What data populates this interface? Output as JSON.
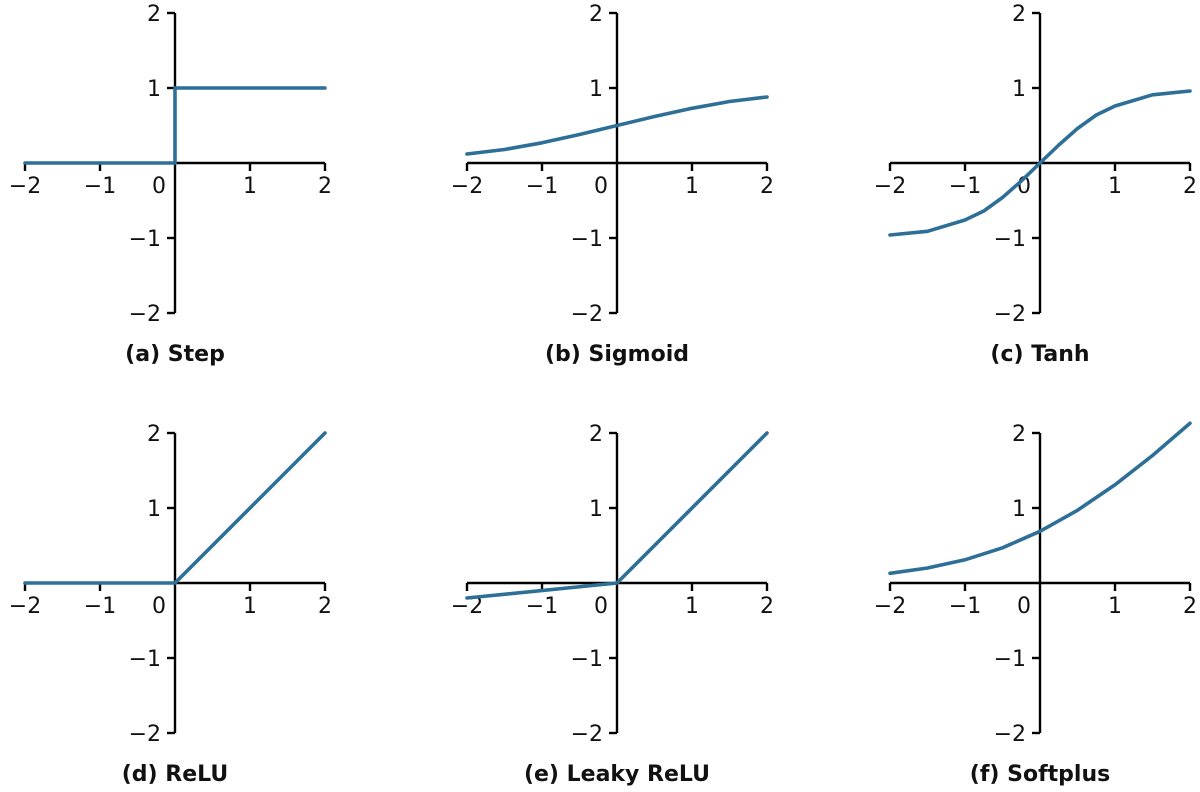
{
  "figure": {
    "line_color": "#2e6f97",
    "axis_color": "#000000"
  },
  "chart_data": [
    {
      "type": "line",
      "caption": "(a) Step",
      "xlim": [
        -2,
        2
      ],
      "ylim": [
        -2,
        2
      ],
      "x_ticks": [
        -2,
        -1,
        0,
        1,
        2
      ],
      "x_tick_labels": [
        "−2",
        "−1",
        "0",
        "1",
        "2"
      ],
      "y_ticks": [
        -2,
        -1,
        1,
        2
      ],
      "y_tick_labels": [
        "−2",
        "−1",
        "1",
        "2"
      ],
      "grid": false,
      "series": [
        {
          "x": [
            -2,
            0,
            0,
            2
          ],
          "y": [
            0,
            0,
            1,
            1
          ]
        }
      ]
    },
    {
      "type": "line",
      "caption": "(b) Sigmoid",
      "xlim": [
        -2,
        2
      ],
      "ylim": [
        -2,
        2
      ],
      "x_ticks": [
        -2,
        -1,
        0,
        1,
        2
      ],
      "x_tick_labels": [
        "−2",
        "−1",
        "0",
        "1",
        "2"
      ],
      "y_ticks": [
        -2,
        -1,
        1,
        2
      ],
      "y_tick_labels": [
        "−2",
        "−1",
        "1",
        "2"
      ],
      "grid": false,
      "series": [
        {
          "x": [
            -2,
            -1.5,
            -1,
            -0.5,
            0,
            0.5,
            1,
            1.5,
            2
          ],
          "y": [
            0.12,
            0.18,
            0.27,
            0.38,
            0.5,
            0.62,
            0.73,
            0.82,
            0.88
          ]
        }
      ]
    },
    {
      "type": "line",
      "caption": "(c) Tanh",
      "xlim": [
        -2,
        2
      ],
      "ylim": [
        -2,
        2
      ],
      "x_ticks": [
        -2,
        -1,
        0,
        1,
        2
      ],
      "x_tick_labels": [
        "−2",
        "−1",
        "0",
        "1",
        "2"
      ],
      "y_ticks": [
        -2,
        -1,
        1,
        2
      ],
      "y_tick_labels": [
        "−2",
        "−1",
        "1",
        "2"
      ],
      "grid": false,
      "series": [
        {
          "x": [
            -2,
            -1.5,
            -1,
            -0.75,
            -0.5,
            -0.25,
            0,
            0.25,
            0.5,
            0.75,
            1,
            1.5,
            2
          ],
          "y": [
            -0.96,
            -0.91,
            -0.76,
            -0.64,
            -0.46,
            -0.24,
            0,
            0.24,
            0.46,
            0.64,
            0.76,
            0.91,
            0.96
          ]
        }
      ]
    },
    {
      "type": "line",
      "caption": "(d) ReLU",
      "xlim": [
        -2,
        2
      ],
      "ylim": [
        -2,
        2
      ],
      "x_ticks": [
        -2,
        -1,
        0,
        1,
        2
      ],
      "x_tick_labels": [
        "−2",
        "−1",
        "0",
        "1",
        "2"
      ],
      "y_ticks": [
        -2,
        -1,
        1,
        2
      ],
      "y_tick_labels": [
        "−2",
        "−1",
        "1",
        "2"
      ],
      "grid": false,
      "series": [
        {
          "x": [
            -2,
            0,
            2
          ],
          "y": [
            0,
            0,
            2
          ]
        }
      ]
    },
    {
      "type": "line",
      "caption": "(e) Leaky ReLU",
      "xlim": [
        -2,
        2
      ],
      "ylim": [
        -2,
        2
      ],
      "x_ticks": [
        -2,
        -1,
        0,
        1,
        2
      ],
      "x_tick_labels": [
        "−2",
        "−1",
        "0",
        "1",
        "2"
      ],
      "y_ticks": [
        -2,
        -1,
        1,
        2
      ],
      "y_tick_labels": [
        "−2",
        "−1",
        "1",
        "2"
      ],
      "grid": false,
      "series": [
        {
          "x": [
            -2,
            0,
            2
          ],
          "y": [
            -0.2,
            0,
            2
          ]
        }
      ]
    },
    {
      "type": "line",
      "caption": "(f) Softplus",
      "xlim": [
        -2,
        2
      ],
      "ylim": [
        -2,
        2
      ],
      "x_ticks": [
        -2,
        -1,
        0,
        1,
        2
      ],
      "x_tick_labels": [
        "−2",
        "−1",
        "0",
        "1",
        "2"
      ],
      "y_ticks": [
        -2,
        -1,
        1,
        2
      ],
      "y_tick_labels": [
        "−2",
        "−1",
        "1",
        "2"
      ],
      "grid": false,
      "series": [
        {
          "x": [
            -2,
            -1.5,
            -1,
            -0.5,
            0,
            0.5,
            1,
            1.5,
            2
          ],
          "y": [
            0.13,
            0.2,
            0.31,
            0.47,
            0.69,
            0.97,
            1.31,
            1.7,
            2.13
          ]
        }
      ]
    }
  ]
}
